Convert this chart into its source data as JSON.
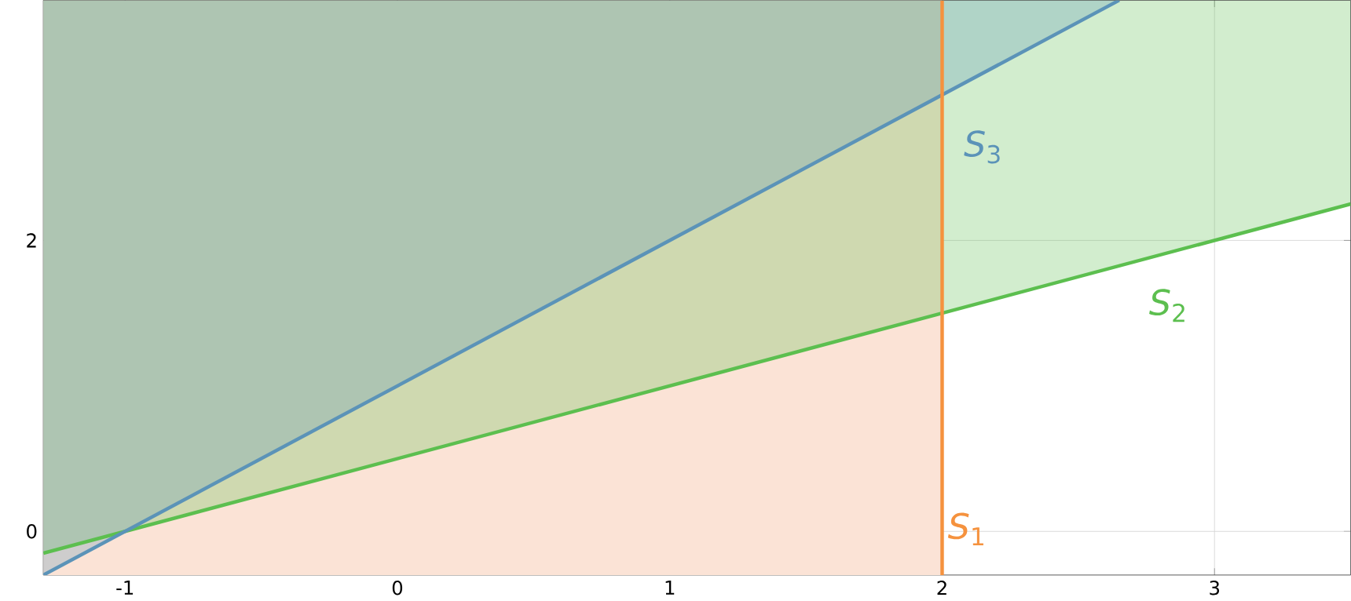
{
  "chart_data": {
    "type": "line",
    "xlim": [
      -1.3,
      3.5
    ],
    "ylim": [
      -0.3,
      3.65
    ],
    "xticks": [
      -1,
      0,
      1,
      2,
      3
    ],
    "yticks": [
      0,
      2
    ],
    "grid": true,
    "series": [
      {
        "name": "*S*$_{2}$",
        "color": "#5cbf4f",
        "x": [
          -1.3,
          3.5
        ],
        "values": [
          -0.15,
          2.25
        ],
        "lower": [
          -0.15,
          2.25
        ],
        "upper": [
          3.65,
          3.65
        ]
      },
      {
        "name": "*S*$_{3}$",
        "color": "#5b93b8",
        "x": [
          -1.3,
          2.65
        ],
        "values": [
          -0.3,
          3.65
        ],
        "lower": [
          -0.3,
          3.65
        ],
        "upper": [
          3.65,
          3.65
        ]
      }
    ],
    "ref_lines": [
      {
        "axis": "x",
        "value": 2,
        "label": "*S*$_{1}$",
        "color": "#f5923e"
      }
    ],
    "bands": [
      {
        "axis": "x",
        "from": -1.3,
        "to": 2,
        "color": "#fbe3d6"
      }
    ]
  }
}
